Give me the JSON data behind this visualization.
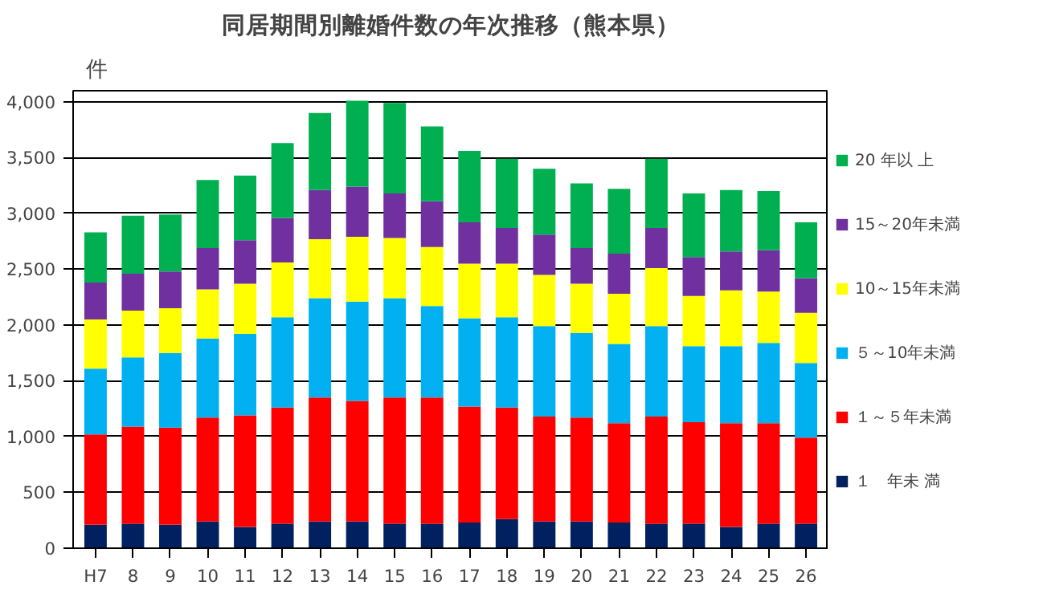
{
  "chart_data": {
    "type": "bar",
    "stacked": true,
    "title": "同居期間別離婚件数の年次推移（熊本県）",
    "ylabel": "件",
    "categories": [
      "H7",
      "8",
      "9",
      "10",
      "11",
      "12",
      "13",
      "14",
      "15",
      "16",
      "17",
      "18",
      "19",
      "20",
      "21",
      "22",
      "23",
      "24",
      "25",
      "26"
    ],
    "series": [
      {
        "name": "１　年未 満",
        "color": "#002060",
        "values": [
          210,
          220,
          210,
          240,
          190,
          220,
          240,
          240,
          220,
          220,
          230,
          260,
          240,
          240,
          230,
          220,
          220,
          190,
          220,
          220
        ]
      },
      {
        "name": "１～５年未満",
        "color": "#ff0000",
        "values": [
          810,
          870,
          870,
          930,
          1000,
          1040,
          1110,
          1080,
          1130,
          1130,
          1040,
          1000,
          940,
          930,
          890,
          960,
          910,
          930,
          900,
          770
        ]
      },
      {
        "name": "５～10年未満",
        "color": "#00b0f0",
        "values": [
          590,
          620,
          670,
          710,
          730,
          810,
          890,
          890,
          890,
          820,
          790,
          810,
          810,
          760,
          710,
          810,
          680,
          690,
          720,
          670
        ]
      },
      {
        "name": "10～15年未満",
        "color": "#ffff00",
        "values": [
          440,
          420,
          400,
          440,
          450,
          490,
          530,
          580,
          540,
          530,
          490,
          480,
          460,
          440,
          450,
          520,
          450,
          500,
          460,
          450
        ]
      },
      {
        "name": "15～20年未満",
        "color": "#7030a0",
        "values": [
          330,
          330,
          330,
          370,
          390,
          400,
          440,
          450,
          400,
          410,
          370,
          320,
          360,
          320,
          360,
          360,
          350,
          350,
          370,
          310
        ]
      },
      {
        "name": "20 年以 上",
        "color": "#00b050",
        "values": [
          450,
          520,
          510,
          610,
          580,
          670,
          690,
          770,
          810,
          670,
          640,
          620,
          590,
          580,
          580,
          620,
          570,
          550,
          530,
          500
        ]
      }
    ],
    "ylim": [
      0,
      4100
    ],
    "yticks": [
      0,
      500,
      {
        "value": 1000,
        "label": "1,000"
      },
      {
        "value": 1500,
        "label": "1,500"
      },
      {
        "value": 2000,
        "label": "2,000"
      },
      {
        "value": 2500,
        "label": "2,500"
      },
      {
        "value": 3000,
        "label": "3,000"
      },
      {
        "value": 3500,
        "label": "3,500"
      },
      {
        "value": 4000,
        "label": "4,000"
      }
    ],
    "grid": "y",
    "legend": "right"
  }
}
